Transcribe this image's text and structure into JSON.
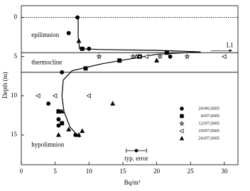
{
  "chart_data": {
    "type": "scatter",
    "xlabel": "Bq/m³",
    "ylabel": "Depth (m)",
    "xlim": [
      0,
      32
    ],
    "xticks": [
      0,
      5,
      10,
      15,
      20,
      25,
      30
    ],
    "ylim": [
      -1.5,
      18.8
    ],
    "yticks": [
      0,
      5,
      10,
      15
    ],
    "y_inverted": true,
    "hlines": [
      {
        "value": 0,
        "style": "dotted"
      },
      {
        "value": 4.5,
        "style": "solid"
      },
      {
        "value": 7,
        "style": "solid"
      }
    ],
    "annotations": [
      {
        "text": "epilimnion",
        "x": 1.5,
        "y": 2.3
      },
      {
        "text": "thermocline",
        "x": 1.5,
        "y": 5.8
      },
      {
        "text": "hypolimnion",
        "x": 1.5,
        "y": 16.3
      },
      {
        "text": "L1",
        "x": 30.3,
        "y": 3.6
      }
    ],
    "fit_curve": {
      "x": [
        8.4,
        8.4,
        8.6,
        12,
        20,
        26.5,
        20,
        12,
        7.5,
        6.2,
        6,
        6.3,
        7.2,
        8.6
      ],
      "y": [
        -0.2,
        2.5,
        4,
        4.1,
        4.2,
        4.4,
        4.7,
        5.9,
        6.8,
        8,
        10,
        12,
        14,
        15.3
      ]
    },
    "typical_error": {
      "label": "typ. error",
      "x": 17,
      "y": 17,
      "xerr": 1.5
    },
    "series": [
      {
        "name": "20/06/2005",
        "marker": "circle",
        "filled": true,
        "color": "#000000",
        "x": [
          8.3,
          7,
          10,
          22,
          6,
          4,
          5.5,
          5.5,
          8
        ],
        "y": [
          0,
          2,
          4,
          5,
          7,
          11,
          13,
          13.8,
          15
        ]
      },
      {
        "name": "4/07/2005",
        "marker": "square",
        "filled": true,
        "color": "#000000",
        "x": [
          9,
          21.5,
          17.5,
          14.5,
          9.5,
          5.5,
          6
        ],
        "y": [
          4,
          4.5,
          5,
          5.5,
          6.5,
          12,
          13.5
        ]
      },
      {
        "name": "12/07/2005",
        "marker": "star",
        "filled": false,
        "color": "#000000",
        "x": [
          11.5,
          16.5,
          17,
          17.5,
          20.5,
          24.5
        ],
        "y": [
          5,
          5,
          5,
          5,
          5,
          5
        ]
      },
      {
        "name": "19/07/2005",
        "marker": "triangle-left",
        "filled": false,
        "color": "#000000",
        "x": [
          30,
          18.5,
          2.5,
          5,
          10
        ],
        "y": [
          5,
          5,
          10,
          10,
          10
        ]
      },
      {
        "name": "26/07/2005",
        "marker": "triangle-up",
        "filled": true,
        "color": "#000000",
        "x": [
          8.5,
          20,
          5.5,
          6,
          7,
          13.5,
          8.5,
          9,
          5.5
        ],
        "y": [
          3,
          5.5,
          12,
          12,
          14.3,
          11,
          15,
          14.5,
          15
        ]
      }
    ]
  }
}
